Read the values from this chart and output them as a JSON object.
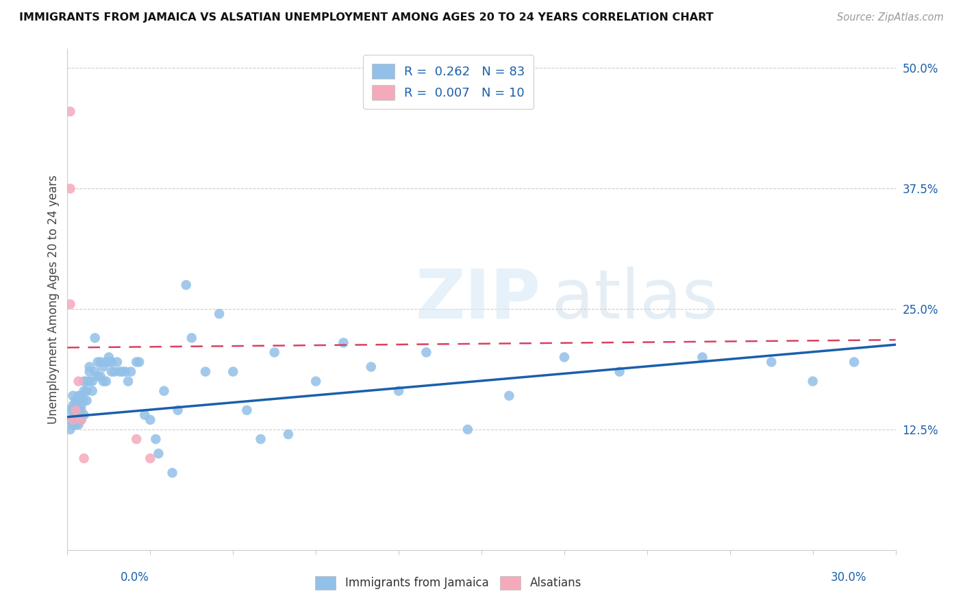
{
  "title": "IMMIGRANTS FROM JAMAICA VS ALSATIAN UNEMPLOYMENT AMONG AGES 20 TO 24 YEARS CORRELATION CHART",
  "source": "Source: ZipAtlas.com",
  "ylabel": "Unemployment Among Ages 20 to 24 years",
  "xlim": [
    0.0,
    0.3
  ],
  "ylim": [
    0.0,
    0.52
  ],
  "blue_color": "#92C0E8",
  "pink_color": "#F5AABB",
  "blue_line_color": "#1A5FAB",
  "pink_line_color": "#D94060",
  "watermark_zip": "ZIP",
  "watermark_atlas": "atlas",
  "blue_line_x0": 0.0,
  "blue_line_y0": 0.138,
  "blue_line_x1": 0.3,
  "blue_line_y1": 0.213,
  "pink_line_x0": 0.0,
  "pink_line_y0": 0.21,
  "pink_line_x1": 0.3,
  "pink_line_y1": 0.218,
  "blue_scatter_x": [
    0.001,
    0.001,
    0.001,
    0.002,
    0.002,
    0.002,
    0.002,
    0.003,
    0.003,
    0.003,
    0.003,
    0.004,
    0.004,
    0.004,
    0.004,
    0.005,
    0.005,
    0.005,
    0.005,
    0.006,
    0.006,
    0.006,
    0.006,
    0.007,
    0.007,
    0.007,
    0.008,
    0.008,
    0.008,
    0.009,
    0.009,
    0.01,
    0.01,
    0.011,
    0.011,
    0.012,
    0.012,
    0.013,
    0.013,
    0.014,
    0.014,
    0.015,
    0.015,
    0.016,
    0.016,
    0.017,
    0.018,
    0.019,
    0.02,
    0.021,
    0.022,
    0.023,
    0.025,
    0.026,
    0.028,
    0.03,
    0.032,
    0.033,
    0.035,
    0.038,
    0.04,
    0.043,
    0.045,
    0.05,
    0.055,
    0.06,
    0.065,
    0.07,
    0.075,
    0.08,
    0.09,
    0.1,
    0.11,
    0.12,
    0.13,
    0.145,
    0.16,
    0.18,
    0.2,
    0.23,
    0.255,
    0.27,
    0.285
  ],
  "blue_scatter_y": [
    0.125,
    0.135,
    0.145,
    0.13,
    0.145,
    0.15,
    0.16,
    0.13,
    0.14,
    0.15,
    0.155,
    0.13,
    0.145,
    0.155,
    0.16,
    0.135,
    0.145,
    0.15,
    0.16,
    0.14,
    0.155,
    0.165,
    0.175,
    0.155,
    0.165,
    0.175,
    0.175,
    0.185,
    0.19,
    0.165,
    0.175,
    0.185,
    0.22,
    0.18,
    0.195,
    0.18,
    0.195,
    0.175,
    0.19,
    0.175,
    0.195,
    0.195,
    0.2,
    0.185,
    0.195,
    0.185,
    0.195,
    0.185,
    0.185,
    0.185,
    0.175,
    0.185,
    0.195,
    0.195,
    0.14,
    0.135,
    0.115,
    0.1,
    0.165,
    0.08,
    0.145,
    0.275,
    0.22,
    0.185,
    0.245,
    0.185,
    0.145,
    0.115,
    0.205,
    0.12,
    0.175,
    0.215,
    0.19,
    0.165,
    0.205,
    0.125,
    0.16,
    0.2,
    0.185,
    0.2,
    0.195,
    0.175,
    0.195
  ],
  "pink_scatter_x": [
    0.001,
    0.001,
    0.001,
    0.002,
    0.003,
    0.004,
    0.005,
    0.006,
    0.025,
    0.03
  ],
  "pink_scatter_y": [
    0.455,
    0.375,
    0.255,
    0.135,
    0.145,
    0.175,
    0.135,
    0.095,
    0.115,
    0.095
  ],
  "ytick_vals": [
    0.125,
    0.25,
    0.375,
    0.5
  ],
  "ytick_labels": [
    "12.5%",
    "25.0%",
    "37.5%",
    "50.0%"
  ],
  "xtick_count": 11
}
